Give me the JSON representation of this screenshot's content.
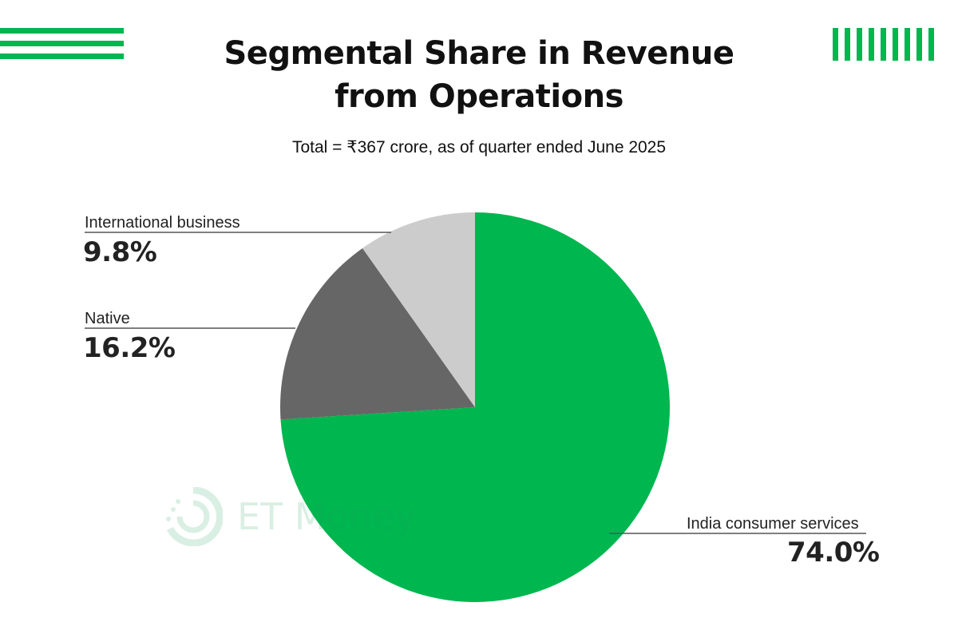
{
  "header": {
    "title_line1": "Segmental Share in Revenue",
    "title_line2": "from Operations",
    "subtitle": "Total = ₹367 crore, as of quarter ended June  2025"
  },
  "watermark": {
    "text": "ET Money",
    "icon": "et-money-logo-icon"
  },
  "colors": {
    "accent": "#00b64f",
    "india": "#00b64f",
    "native": "#666666",
    "international": "#cccccc"
  },
  "chart_data": {
    "type": "pie",
    "title": "Segmental Share in Revenue from Operations",
    "subtitle": "Total = ₹367 crore, as of quarter ended June  2025",
    "unit": "%",
    "slices": [
      {
        "label": "India consumer services",
        "value": 74.0,
        "display": "74.0%",
        "color": "#00b64f"
      },
      {
        "label": "Native",
        "value": 16.2,
        "display": "16.2%",
        "color": "#666666"
      },
      {
        "label": "International business",
        "value": 9.8,
        "display": "9.8%",
        "color": "#cccccc"
      }
    ]
  }
}
